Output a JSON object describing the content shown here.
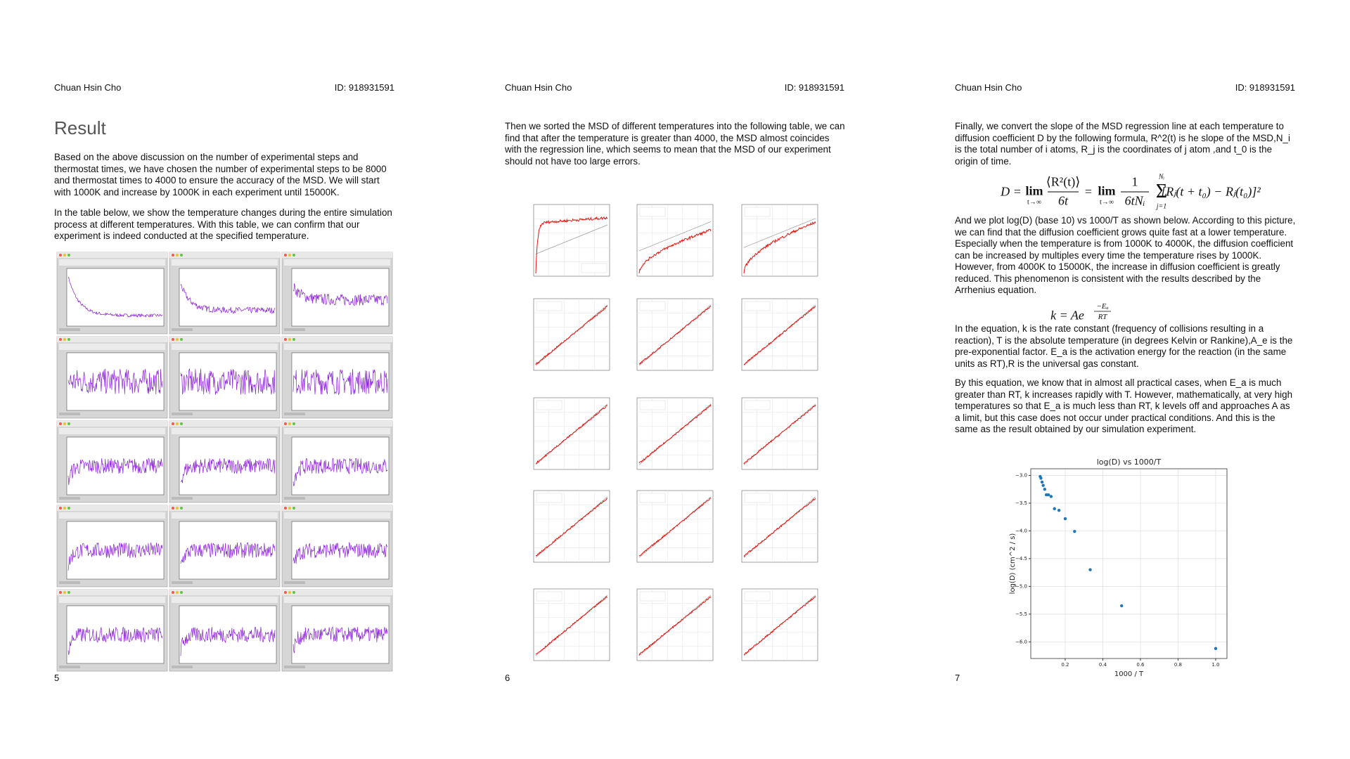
{
  "pages": [
    {
      "header": {
        "author": "Chuan Hsin Cho",
        "id": "ID: 918931591"
      },
      "title": "Result",
      "paragraphs": [
        "Based on the above discussion on the number of experimental steps and thermostat times, we have chosen the number of experimental steps to be 8000 and thermostat times to 4000 to ensure the accuracy of the MSD. We will start with 1000K and increase by 1000K in each experiment until 15000K.",
        "In the table below, we show the temperature changes during the entire simulation process at different temperatures. With this table, we can confirm that our experiment is indeed conducted at the specified temperature."
      ],
      "page_number": "5"
    },
    {
      "header": {
        "author": "Chuan Hsin Cho",
        "id": "ID: 918931591"
      },
      "paragraphs": [
        "Then we sorted the MSD of different temperatures into the following table, we can find that after the temperature is greater than 4000, the MSD almost coincides with the regression line, which seems to mean that the MSD of our experiment should not have too large errors."
      ],
      "page_number": "6"
    },
    {
      "header": {
        "author": "Chuan Hsin Cho",
        "id": "ID: 918931591"
      },
      "paragraphs": [
        "Finally, we convert the slope of the MSD regression line at each temperature to diffusion coefficient D by the following formula, R^2(t) is he slope of the MSD,N_i is the total number of i atoms, R_j is the coordinates of j atom ,and t_0 is the origin of time.",
        "And we plot log(D) (base 10) vs 1000/T as shown below. According to this picture, we can find that the diffusion coefficient grows quite fast at a lower temperature. Especially when the temperature is from 1000K to 4000K, the diffusion coefficient can be increased by multiples every time the temperature rises by 1000K. However, from 4000K to 15000K, the increase in diffusion coefficient is greatly reduced. This phenomenon is consistent with the results described by the Arrhenius equation.",
        "In the equation, k is the rate constant (frequency of collisions resulting in a reaction), T is the absolute temperature (in degrees Kelvin or Rankine),A_e is the pre-exponential factor. E_a is the activation energy for the reaction (in the same units as RT),R is the universal gas constant.",
        "By this equation, we know that in almost all practical cases, when E_a is much greater than RT,  k increases rapidly with T. However, mathematically, at very high temperatures so that E_a is much less than RT, k levels off and approaches A as a limit, but this case does not occur under practical conditions. And this is the same as the result obtained by our simulation experiment."
      ],
      "formula_diffusion": {
        "lhs": "D =",
        "lim": "lim",
        "limit_sub": "t→∞",
        "numerator": "⟨R²(t)⟩",
        "denominator": "6t",
        "equals": "=",
        "numerator_2": "1",
        "denominator_2": "6tNᵢ",
        "sum": "Σ",
        "sum_top": "Nᵢ",
        "sum_bottom": "j=1",
        "term": "[Rⱼ(t + t₀) − Rⱼ(t₀)]²"
      },
      "formula_arrhenius": {
        "base": "k = Ae",
        "exponent_numerator": "−Eₐ",
        "exponent_denominator": "RT"
      },
      "chart_data": {
        "type": "scatter",
        "title": "log(D) vs 1000/T",
        "x_label": "1000 / T",
        "y_label": "log(D) (cm^2 / s)",
        "x": [
          1.0,
          0.5,
          0.333,
          0.25,
          0.2,
          0.167,
          0.143,
          0.125,
          0.111,
          0.1,
          0.091,
          0.083,
          0.077,
          0.071,
          0.067
        ],
        "values": [
          -6.12,
          -5.35,
          -4.7,
          -4.01,
          -3.78,
          -3.63,
          -3.6,
          -3.38,
          -3.35,
          -3.35,
          -3.25,
          -3.18,
          -3.12,
          -3.05,
          -3.02
        ],
        "color": "#1f77b4",
        "xlim": [
          0.017,
          1.06
        ],
        "ylim": [
          -6.3,
          -2.88
        ],
        "xticks": [
          0.2,
          0.4,
          0.6,
          0.8,
          {
            "value": 1,
            "label": "1.0"
          }
        ],
        "yticks": [
          {
            "value": -3,
            "label": "−3.0"
          },
          {
            "value": -3.5,
            "label": "−3.5"
          },
          {
            "value": -4,
            "label": "−4.0"
          },
          {
            "value": -4.5,
            "label": "−4.5"
          },
          {
            "value": -5,
            "label": "−5.0"
          },
          {
            "value": -5.5,
            "label": "−5.5"
          },
          {
            "value": -6,
            "label": "−6.0"
          }
        ],
        "grid": true
      },
      "page_number": "7"
    }
  ]
}
